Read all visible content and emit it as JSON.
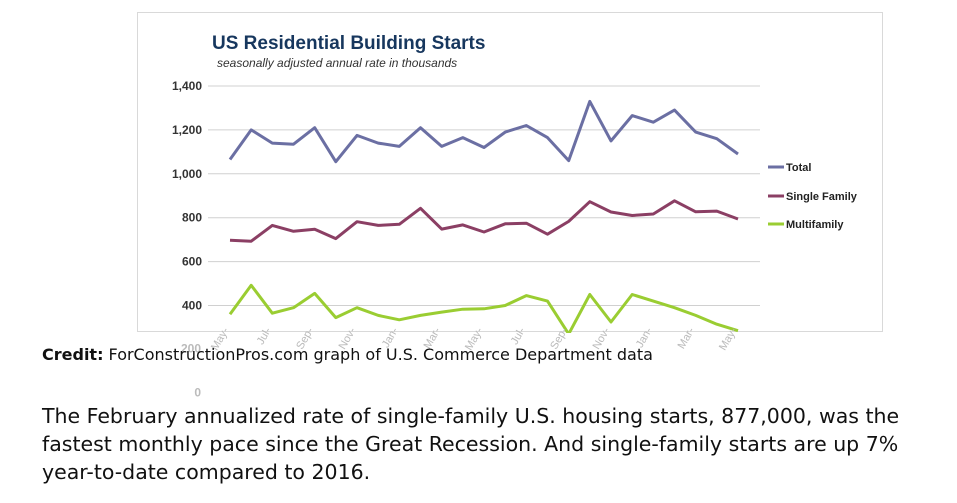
{
  "chart_data": {
    "type": "line",
    "title": "US Residential Building Starts",
    "subtitle": "seasonally adjusted annual rate in thousands",
    "xlabel": "",
    "ylabel": "",
    "ylim": [
      0,
      1400
    ],
    "y_ticks": [
      "0",
      "200",
      "400",
      "600",
      "800",
      "1,000",
      "1,200",
      "1,400"
    ],
    "y_tick_values": [
      0,
      200,
      400,
      600,
      800,
      1000,
      1200,
      1400
    ],
    "x_tick_labels": [
      "May-",
      "Jul-",
      "Sep-",
      "Nov-",
      "Jan-",
      "Mar-",
      "May-",
      "Jul-",
      "Sep-",
      "Nov-",
      "Jan-",
      "Mar-",
      "May-"
    ],
    "grid": true,
    "legend_position": "right",
    "colors": {
      "total": "#6b6fa3",
      "single": "#8b3f64",
      "multi": "#9acd32"
    },
    "series": [
      {
        "name": "Total",
        "values": [
          1065,
          1200,
          1140,
          1135,
          1210,
          1055,
          1175,
          1140,
          1125,
          1210,
          1125,
          1165,
          1120,
          1190,
          1220,
          1165,
          1060,
          1330,
          1150,
          1265,
          1235,
          1290,
          1190,
          1160,
          1090
        ]
      },
      {
        "name": "Single Family",
        "values": [
          697,
          693,
          765,
          738,
          747,
          705,
          782,
          765,
          770,
          843,
          748,
          767,
          735,
          772,
          775,
          725,
          783,
          873,
          826,
          810,
          817,
          877,
          827,
          830,
          794
        ]
      },
      {
        "name": "Multifamily",
        "values": [
          360,
          492,
          365,
          390,
          455,
          345,
          390,
          355,
          335,
          355,
          370,
          383,
          385,
          400,
          445,
          420,
          270,
          450,
          325,
          450,
          420,
          390,
          355,
          315,
          285
        ]
      }
    ]
  },
  "credit": {
    "label": "Credit:",
    "text": " ForConstructionPros.com graph of U.S. Commerce Department data"
  },
  "article": {
    "text": "The February annualized rate of single-family U.S. housing starts, 877,000, was the fastest monthly pace since the Great Recession. And single-family starts are up 7% year-to-date compared to 2016."
  }
}
